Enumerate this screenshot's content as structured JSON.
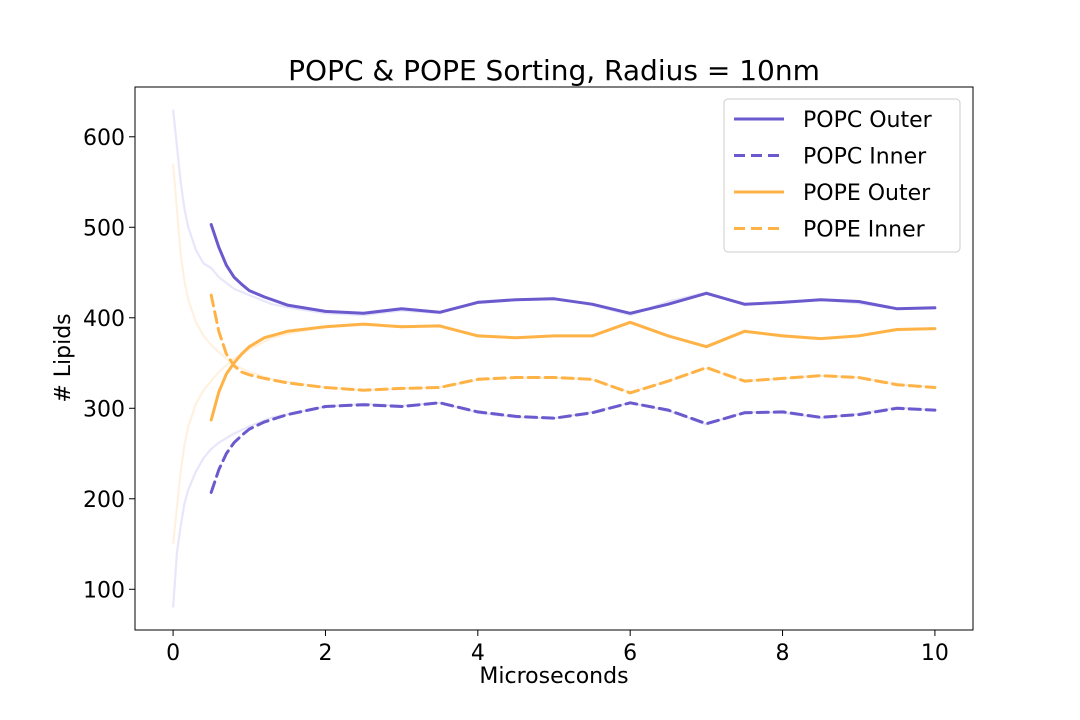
{
  "chart_data": {
    "type": "line",
    "title": "POPC & POPE Sorting, Radius = 10nm",
    "xlabel": "Microseconds",
    "ylabel": "# Lipids",
    "xlim": [
      -0.5,
      10.5
    ],
    "ylim": [
      55,
      655
    ],
    "xticks": [
      0,
      2,
      4,
      6,
      8,
      10
    ],
    "yticks": [
      100,
      200,
      300,
      400,
      500,
      600
    ],
    "grid": false,
    "legend_position": "top-right",
    "colors": {
      "popc": "#6a5acd",
      "pope": "#ffb347"
    },
    "series": [
      {
        "name": "POPC Outer",
        "color": "#6a5acd",
        "style": "solid",
        "x": [
          0.5,
          0.6,
          0.7,
          0.8,
          0.9,
          1.0,
          1.2,
          1.5,
          2.0,
          2.5,
          3.0,
          3.5,
          4.0,
          4.5,
          5.0,
          5.5,
          6.0,
          6.5,
          7.0,
          7.5,
          8.0,
          8.5,
          9.0,
          9.5,
          10.0
        ],
        "values": [
          503,
          478,
          458,
          445,
          437,
          430,
          423,
          414,
          407,
          405,
          410,
          406,
          417,
          420,
          421,
          415,
          405,
          415,
          427,
          415,
          417,
          420,
          418,
          410,
          411
        ]
      },
      {
        "name": "POPC Inner",
        "color": "#6a5acd",
        "style": "dashed",
        "x": [
          0.5,
          0.6,
          0.7,
          0.8,
          0.9,
          1.0,
          1.2,
          1.5,
          2.0,
          2.5,
          3.0,
          3.5,
          4.0,
          4.5,
          5.0,
          5.5,
          6.0,
          6.5,
          7.0,
          7.5,
          8.0,
          8.5,
          9.0,
          9.5,
          10.0
        ],
        "values": [
          207,
          232,
          250,
          262,
          270,
          277,
          285,
          293,
          302,
          304,
          302,
          306,
          296,
          291,
          289,
          295,
          306,
          298,
          283,
          295,
          296,
          290,
          293,
          300,
          298
        ]
      },
      {
        "name": "POPE Outer",
        "color": "#ffb347",
        "style": "solid",
        "x": [
          0.5,
          0.6,
          0.7,
          0.8,
          0.9,
          1.0,
          1.2,
          1.5,
          2.0,
          2.5,
          3.0,
          3.5,
          4.0,
          4.5,
          5.0,
          5.5,
          6.0,
          6.5,
          7.0,
          7.5,
          8.0,
          8.5,
          9.0,
          9.5,
          10.0
        ],
        "values": [
          287,
          318,
          338,
          350,
          360,
          368,
          378,
          385,
          390,
          393,
          390,
          391,
          380,
          378,
          380,
          380,
          395,
          380,
          368,
          385,
          380,
          377,
          380,
          387,
          388
        ]
      },
      {
        "name": "POPE Inner",
        "color": "#ffb347",
        "style": "dashed",
        "x": [
          0.5,
          0.6,
          0.7,
          0.8,
          0.9,
          1.0,
          1.2,
          1.5,
          2.0,
          2.5,
          3.0,
          3.5,
          4.0,
          4.5,
          5.0,
          5.5,
          6.0,
          6.5,
          7.0,
          7.5,
          8.0,
          8.5,
          9.0,
          9.5,
          10.0
        ],
        "values": [
          425,
          385,
          360,
          347,
          340,
          337,
          333,
          328,
          323,
          320,
          322,
          323,
          332,
          334,
          334,
          332,
          317,
          330,
          345,
          330,
          333,
          336,
          334,
          326,
          323
        ]
      }
    ],
    "raw_series": [
      {
        "name": "POPC Outer (raw)",
        "color": "#e8e6fb",
        "x": [
          0.0,
          0.05,
          0.1,
          0.15,
          0.2,
          0.3,
          0.4,
          0.5,
          0.6,
          0.8,
          1.0,
          1.3,
          1.6,
          2.0,
          2.5,
          3.0,
          3.5,
          4.0,
          4.5,
          5.0,
          5.5,
          6.0,
          6.5,
          7.0,
          7.5,
          8.0,
          8.5,
          9.0,
          9.5,
          10.0
        ],
        "values": [
          630,
          590,
          550,
          520,
          500,
          475,
          460,
          455,
          445,
          432,
          425,
          415,
          410,
          405,
          403,
          408,
          405,
          418,
          420,
          422,
          414,
          403,
          418,
          428,
          414,
          418,
          420,
          416,
          410,
          410
        ]
      },
      {
        "name": "POPC Inner (raw)",
        "color": "#e8e6fb",
        "x": [
          0.0,
          0.05,
          0.1,
          0.15,
          0.2,
          0.3,
          0.4,
          0.5,
          0.6,
          0.8,
          1.0,
          1.3,
          1.6,
          2.0,
          2.5,
          3.0,
          3.5,
          4.0,
          4.5,
          5.0,
          5.5,
          6.0,
          6.5,
          7.0,
          7.5,
          8.0,
          8.5,
          9.0,
          9.5,
          10.0
        ],
        "values": [
          80,
          140,
          170,
          195,
          210,
          230,
          245,
          255,
          262,
          272,
          280,
          290,
          295,
          302,
          305,
          303,
          306,
          295,
          290,
          289,
          296,
          306,
          297,
          282,
          296,
          295,
          289,
          294,
          301,
          298
        ]
      },
      {
        "name": "POPE Outer (raw)",
        "color": "#fff1e0",
        "x": [
          0.0,
          0.05,
          0.1,
          0.15,
          0.2,
          0.3,
          0.4,
          0.5,
          0.6,
          0.8,
          1.0,
          1.3,
          1.6,
          2.0,
          2.5,
          3.0,
          3.5,
          4.0,
          4.5,
          5.0,
          5.5,
          6.0,
          6.5,
          7.0,
          7.5,
          8.0,
          8.5,
          9.0,
          9.5,
          10.0
        ],
        "values": [
          150,
          190,
          230,
          260,
          280,
          305,
          320,
          330,
          340,
          355,
          365,
          378,
          384,
          390,
          392,
          391,
          390,
          381,
          378,
          380,
          380,
          394,
          380,
          369,
          384,
          381,
          377,
          380,
          386,
          388
        ]
      },
      {
        "name": "POPE Inner (raw)",
        "color": "#fff1e0",
        "x": [
          0.0,
          0.05,
          0.1,
          0.15,
          0.2,
          0.3,
          0.4,
          0.5,
          0.6,
          0.8,
          1.0,
          1.3,
          1.6,
          2.0,
          2.5,
          3.0,
          3.5,
          4.0,
          4.5,
          5.0,
          5.5,
          6.0,
          6.5,
          7.0,
          7.5,
          8.0,
          8.5,
          9.0,
          9.5,
          10.0
        ],
        "values": [
          570,
          520,
          470,
          440,
          420,
          395,
          380,
          370,
          362,
          348,
          340,
          332,
          328,
          323,
          320,
          322,
          323,
          331,
          334,
          334,
          332,
          318,
          330,
          344,
          330,
          333,
          336,
          334,
          327,
          323
        ]
      }
    ]
  }
}
